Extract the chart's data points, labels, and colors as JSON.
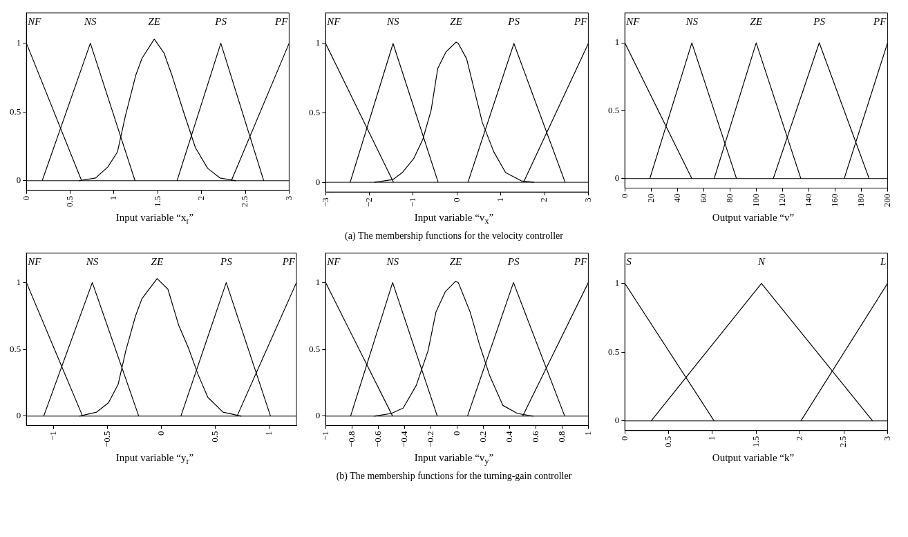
{
  "chart_data": [
    {
      "type": "line",
      "xlabel": "Input variable “x$_{r}$”",
      "xlim": [
        0,
        3
      ],
      "xticks": [
        0,
        0.5,
        1,
        1.5,
        2,
        2.5,
        3
      ],
      "ylim": [
        -0.07,
        1.22
      ],
      "yticks": [
        0,
        0.5,
        1
      ],
      "ref_lines": [
        {
          "axis": "y",
          "value": 0,
          "color": "#000000"
        }
      ],
      "series": [
        {
          "name": "NF",
          "color": "#000000",
          "x": [
            0,
            0.63
          ],
          "values": [
            1,
            0
          ]
        },
        {
          "name": "NS",
          "color": "#000000",
          "x": [
            0.18,
            0.73,
            1.24
          ],
          "values": [
            0,
            1,
            0
          ]
        },
        {
          "name": "ZE",
          "color": "#000000",
          "x": [
            0.6,
            0.79,
            0.93,
            1.04,
            1.13,
            1.25,
            1.32,
            1.46,
            1.57,
            1.66,
            1.8,
            1.93,
            2.07,
            2.21,
            2.39
          ],
          "values": [
            0,
            0.02,
            0.1,
            0.21,
            0.47,
            0.77,
            0.89,
            1.03,
            0.93,
            0.77,
            0.49,
            0.24,
            0.09,
            0.02,
            0
          ]
        },
        {
          "name": "PS",
          "color": "#000000",
          "x": [
            1.72,
            2.22,
            2.71
          ],
          "values": [
            0,
            1,
            0
          ]
        },
        {
          "name": "PF",
          "color": "#000000",
          "x": [
            2.34,
            3
          ],
          "values": [
            0,
            1
          ]
        }
      ]
    },
    {
      "type": "line",
      "xlabel": "Input variable “v$_{x}$”",
      "xlim": [
        -3,
        3
      ],
      "xticks": [
        {
          "value": -3,
          "label": "−3"
        },
        {
          "value": -2,
          "label": "−2"
        },
        {
          "value": -1,
          "label": "−1"
        },
        0,
        1,
        2,
        3
      ],
      "ylim": [
        -0.07,
        1.22
      ],
      "yticks": [
        0,
        0.5,
        1
      ],
      "ref_lines": [
        {
          "axis": "y",
          "value": 0,
          "color": "#000000"
        }
      ],
      "annotations": [
        "(a) The membership functions for the velocity controller"
      ],
      "series": [
        {
          "name": "NF",
          "color": "#000000",
          "x": [
            -3,
            -1.45
          ],
          "values": [
            1,
            0
          ]
        },
        {
          "name": "NS",
          "color": "#000000",
          "x": [
            -2.44,
            -1.46,
            -0.43
          ],
          "values": [
            0,
            1,
            0
          ]
        },
        {
          "name": "ZE",
          "color": "#000000",
          "x": [
            -1.89,
            -1.46,
            -1.25,
            -0.99,
            -0.78,
            -0.59,
            -0.44,
            -0.25,
            -0.02,
            0.03,
            0.22,
            0.43,
            0.58,
            0.84,
            1.11,
            1.47,
            1.76
          ],
          "values": [
            0,
            0.02,
            0.07,
            0.17,
            0.31,
            0.52,
            0.82,
            0.94,
            1.01,
            1,
            0.89,
            0.62,
            0.43,
            0.22,
            0.07,
            0.01,
            0
          ]
        },
        {
          "name": "PS",
          "color": "#000000",
          "x": [
            0.25,
            1.3,
            2.47
          ],
          "values": [
            0,
            1,
            0
          ]
        },
        {
          "name": "PF",
          "color": "#000000",
          "x": [
            1.52,
            3
          ],
          "values": [
            0,
            1
          ]
        }
      ]
    },
    {
      "type": "line",
      "xlabel": "Output variable “v”",
      "xlim": [
        0,
        200
      ],
      "xticks": [
        0,
        20,
        40,
        60,
        80,
        100,
        120,
        140,
        160,
        180,
        200
      ],
      "ylim": [
        -0.07,
        1.22
      ],
      "yticks": [
        0,
        0.5,
        1
      ],
      "ref_lines": [
        {
          "axis": "y",
          "value": 0,
          "color": "#000000"
        }
      ],
      "series": [
        {
          "name": "NF",
          "color": "#000000",
          "x": [
            0,
            51
          ],
          "values": [
            1,
            0
          ]
        },
        {
          "name": "NS",
          "color": "#000000",
          "x": [
            19,
            51,
            85
          ],
          "values": [
            0,
            1,
            0
          ]
        },
        {
          "name": "ZE",
          "color": "#000000",
          "x": [
            68,
            100,
            134
          ],
          "values": [
            0,
            1,
            0
          ]
        },
        {
          "name": "PS",
          "color": "#000000",
          "x": [
            113,
            148,
            186
          ],
          "values": [
            0,
            1,
            0
          ]
        },
        {
          "name": "PF",
          "color": "#000000",
          "x": [
            167,
            200
          ],
          "values": [
            0,
            1
          ]
        }
      ]
    },
    {
      "type": "line",
      "xlabel": "Input variable “y$_{r}$”",
      "xlim": [
        -1.25,
        1.25
      ],
      "xticks": [
        {
          "value": -1,
          "label": "−1"
        },
        {
          "value": -0.5,
          "label": "−0.5"
        },
        0,
        0.5,
        1
      ],
      "ylim": [
        -0.07,
        1.22
      ],
      "yticks": [
        0,
        0.5,
        1
      ],
      "ref_lines": [
        {
          "axis": "y",
          "value": 0,
          "color": "#000000"
        }
      ],
      "series": [
        {
          "name": "NF",
          "color": "#000000",
          "x": [
            -1.25,
            -0.73
          ],
          "values": [
            1,
            0
          ]
        },
        {
          "name": "NS",
          "color": "#000000",
          "x": [
            -1.09,
            -0.64,
            -0.21
          ],
          "values": [
            0,
            1,
            0
          ]
        },
        {
          "name": "ZE",
          "color": "#000000",
          "x": [
            -0.76,
            -0.6,
            -0.49,
            -0.4,
            -0.33,
            -0.24,
            -0.18,
            -0.04,
            0.06,
            0.16,
            0.25,
            0.34,
            0.43,
            0.57,
            0.74
          ],
          "values": [
            0,
            0.03,
            0.1,
            0.24,
            0.49,
            0.75,
            0.88,
            1.03,
            0.95,
            0.68,
            0.51,
            0.31,
            0.14,
            0.03,
            0
          ]
        },
        {
          "name": "PS",
          "color": "#000000",
          "x": [
            0.18,
            0.6,
            1.01
          ],
          "values": [
            0,
            1,
            0
          ]
        },
        {
          "name": "PF",
          "color": "#000000",
          "x": [
            0.7,
            1.25
          ],
          "values": [
            0,
            1
          ]
        }
      ]
    },
    {
      "type": "line",
      "xlabel": "Input variable “v$_{y}$”",
      "xlim": [
        -1,
        1
      ],
      "xticks": [
        {
          "value": -1,
          "label": "−1"
        },
        {
          "value": -0.8,
          "label": "−0.8"
        },
        {
          "value": -0.6,
          "label": "−0.6"
        },
        {
          "value": -0.4,
          "label": "−0.4"
        },
        {
          "value": -0.2,
          "label": "−0.2"
        },
        0,
        0.2,
        0.4,
        0.6,
        0.8,
        1
      ],
      "ylim": [
        -0.07,
        1.22
      ],
      "yticks": [
        0,
        0.5,
        1
      ],
      "ref_lines": [
        {
          "axis": "y",
          "value": 0,
          "color": "#000000"
        }
      ],
      "annotations": [
        "(b) The membership functions for the turning-gain controller"
      ],
      "series": [
        {
          "name": "NF",
          "color": "#000000",
          "x": [
            -1,
            -0.49
          ],
          "values": [
            1,
            0
          ]
        },
        {
          "name": "NS",
          "color": "#000000",
          "x": [
            -0.81,
            -0.49,
            -0.15
          ],
          "values": [
            0,
            1,
            0
          ]
        },
        {
          "name": "ZE",
          "color": "#000000",
          "x": [
            -0.63,
            -0.5,
            -0.41,
            -0.31,
            -0.22,
            -0.16,
            -0.09,
            -0.01,
            0.01,
            0.1,
            0.17,
            0.25,
            0.35,
            0.46,
            0.58
          ],
          "values": [
            0,
            0.02,
            0.06,
            0.23,
            0.49,
            0.78,
            0.93,
            1.01,
            1,
            0.78,
            0.54,
            0.3,
            0.08,
            0.02,
            0
          ]
        },
        {
          "name": "PS",
          "color": "#000000",
          "x": [
            0.08,
            0.43,
            0.82
          ],
          "values": [
            0,
            1,
            0
          ]
        },
        {
          "name": "PF",
          "color": "#000000",
          "x": [
            0.5,
            1
          ],
          "values": [
            0,
            1
          ]
        }
      ]
    },
    {
      "type": "line",
      "xlabel": "Output variable “k”",
      "xlim": [
        0,
        3
      ],
      "xticks": [
        0,
        0.5,
        1,
        1.5,
        2,
        2.5,
        3
      ],
      "ylim": [
        -0.07,
        1.22
      ],
      "yticks": [
        0,
        0.5,
        1
      ],
      "ref_lines": [
        {
          "axis": "y",
          "value": 0,
          "color": "#000000"
        }
      ],
      "series": [
        {
          "name": "S",
          "color": "#000000",
          "x": [
            0,
            1.02
          ],
          "values": [
            1,
            0
          ]
        },
        {
          "name": "N",
          "color": "#000000",
          "x": [
            0.3,
            1.56,
            2.83
          ],
          "values": [
            0,
            1,
            0
          ]
        },
        {
          "name": "L",
          "color": "#000000",
          "x": [
            2.01,
            3
          ],
          "values": [
            0,
            1
          ]
        }
      ]
    }
  ]
}
